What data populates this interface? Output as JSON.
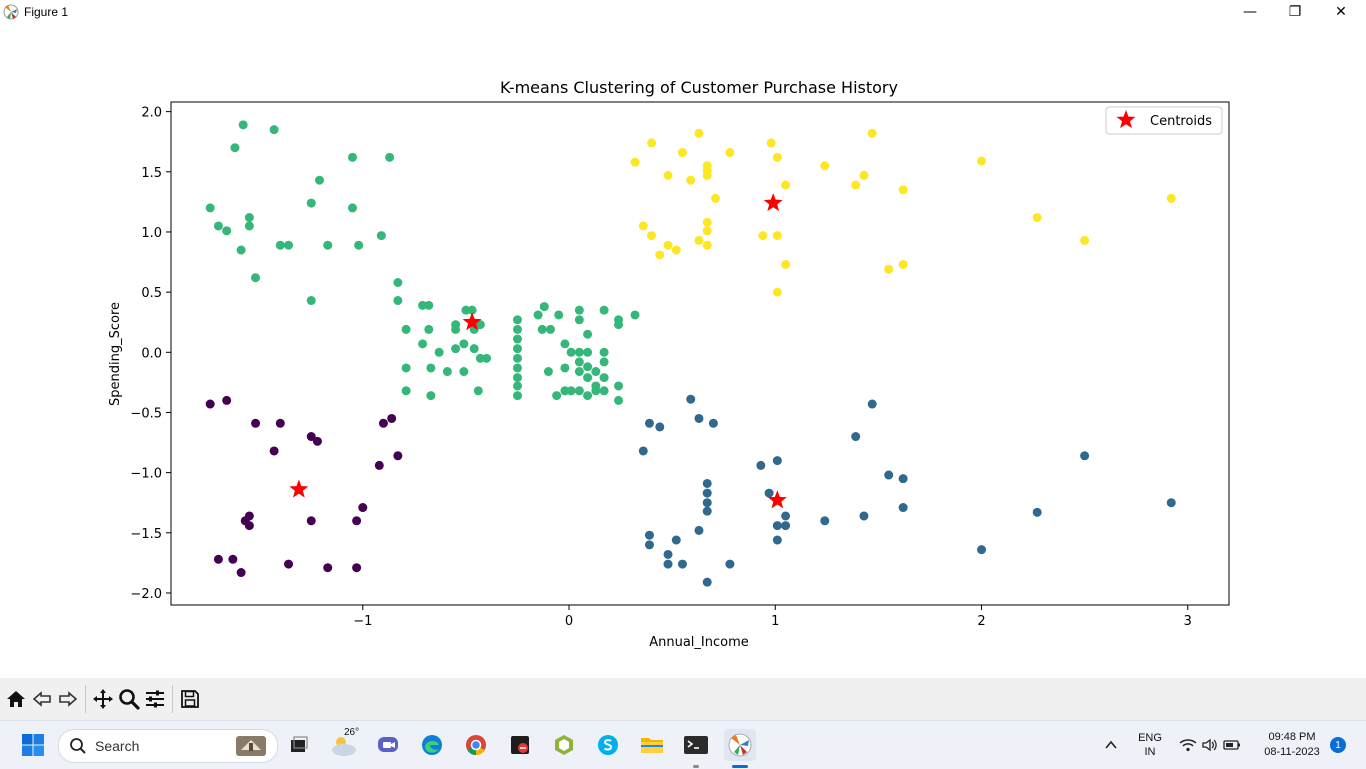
{
  "window": {
    "title": "Figure 1",
    "minimize_label": "—",
    "maximize_label": "❐",
    "close_label": "✕"
  },
  "chart_data": {
    "type": "scatter",
    "title": "K-means Clustering of Customer Purchase History",
    "xlabel": "Annual_Income",
    "ylabel": "Spending_Score",
    "xlim": [
      -1.93,
      3.2
    ],
    "ylim": [
      -2.1,
      2.08
    ],
    "xticks": [
      -1,
      0,
      1,
      2,
      3
    ],
    "xtick_labels": [
      "−1",
      "0",
      "1",
      "2",
      "3"
    ],
    "yticks": [
      -2.0,
      -1.5,
      -1.0,
      -0.5,
      0.0,
      0.5,
      1.0,
      1.5,
      2.0
    ],
    "ytick_labels": [
      "−2.0",
      "−1.5",
      "−1.0",
      "−0.5",
      "0.0",
      "0.5",
      "1.0",
      "1.5",
      "2.0"
    ],
    "grid": false,
    "legend": {
      "placement": "top-right",
      "entries": [
        "Centroids"
      ]
    },
    "clusters": [
      {
        "color": "#440154",
        "points": [
          [
            -1.74,
            -0.43
          ],
          [
            -1.66,
            -0.4
          ],
          [
            -1.52,
            -0.59
          ],
          [
            -1.43,
            -0.82
          ],
          [
            -1.4,
            -0.59
          ],
          [
            -1.25,
            -0.7
          ],
          [
            -1.22,
            -0.74
          ],
          [
            -0.9,
            -0.59
          ],
          [
            -0.86,
            -0.55
          ],
          [
            -0.92,
            -0.94
          ],
          [
            -0.83,
            -0.86
          ],
          [
            -1.0,
            -1.29
          ],
          [
            -1.03,
            -1.4
          ],
          [
            -1.25,
            -1.4
          ],
          [
            -1.57,
            -1.4
          ],
          [
            -1.55,
            -1.36
          ],
          [
            -1.55,
            -1.44
          ],
          [
            -1.7,
            -1.72
          ],
          [
            -1.63,
            -1.72
          ],
          [
            -1.59,
            -1.83
          ],
          [
            -1.36,
            -1.76
          ],
          [
            -1.17,
            -1.79
          ],
          [
            -1.03,
            -1.79
          ]
        ]
      },
      {
        "color": "#31688e",
        "points": [
          [
            0.59,
            -0.39
          ],
          [
            0.39,
            -0.59
          ],
          [
            0.44,
            -0.62
          ],
          [
            0.63,
            -0.55
          ],
          [
            0.7,
            -0.59
          ],
          [
            0.36,
            -0.82
          ],
          [
            0.93,
            -0.94
          ],
          [
            1.01,
            -0.9
          ],
          [
            0.97,
            -1.17
          ],
          [
            1.05,
            -1.36
          ],
          [
            1.01,
            -1.44
          ],
          [
            1.05,
            -1.44
          ],
          [
            1.01,
            -1.56
          ],
          [
            1.24,
            -1.4
          ],
          [
            1.43,
            -1.36
          ],
          [
            1.39,
            -0.7
          ],
          [
            1.47,
            -0.43
          ],
          [
            1.55,
            -1.02
          ],
          [
            1.62,
            -1.05
          ],
          [
            1.62,
            -1.29
          ],
          [
            2.0,
            -1.64
          ],
          [
            2.27,
            -1.33
          ],
          [
            2.5,
            -0.86
          ],
          [
            2.92,
            -1.25
          ],
          [
            0.67,
            -1.09
          ],
          [
            0.67,
            -1.17
          ],
          [
            0.67,
            -1.25
          ],
          [
            0.67,
            -1.32
          ],
          [
            0.63,
            -1.48
          ],
          [
            0.39,
            -1.52
          ],
          [
            0.39,
            -1.6
          ],
          [
            0.52,
            -1.56
          ],
          [
            0.48,
            -1.68
          ],
          [
            0.48,
            -1.76
          ],
          [
            0.55,
            -1.76
          ],
          [
            0.67,
            -1.91
          ],
          [
            0.78,
            -1.76
          ]
        ]
      },
      {
        "color": "#35b779",
        "points": [
          [
            -1.58,
            1.89
          ],
          [
            -1.43,
            1.85
          ],
          [
            -1.62,
            1.7
          ],
          [
            -1.05,
            1.62
          ],
          [
            -0.87,
            1.62
          ],
          [
            -1.21,
            1.43
          ],
          [
            -1.25,
            1.24
          ],
          [
            -1.74,
            1.2
          ],
          [
            -1.05,
            1.2
          ],
          [
            -1.55,
            1.12
          ],
          [
            -1.7,
            1.05
          ],
          [
            -1.66,
            1.01
          ],
          [
            -1.55,
            1.05
          ],
          [
            -0.91,
            0.97
          ],
          [
            -1.4,
            0.89
          ],
          [
            -1.36,
            0.89
          ],
          [
            -1.17,
            0.89
          ],
          [
            -1.02,
            0.89
          ],
          [
            -1.59,
            0.85
          ],
          [
            -1.52,
            0.62
          ],
          [
            -0.83,
            0.58
          ],
          [
            -1.25,
            0.43
          ],
          [
            -0.83,
            0.43
          ],
          [
            -0.71,
            0.39
          ],
          [
            -0.68,
            0.39
          ],
          [
            -0.79,
            0.19
          ],
          [
            -0.68,
            0.19
          ],
          [
            -0.55,
            0.19
          ],
          [
            -0.55,
            0.23
          ],
          [
            -0.5,
            0.35
          ],
          [
            -0.47,
            0.35
          ],
          [
            -0.43,
            0.23
          ],
          [
            -0.46,
            0.19
          ],
          [
            -0.71,
            0.07
          ],
          [
            -0.63,
            0.0
          ],
          [
            -0.55,
            0.03
          ],
          [
            -0.51,
            0.07
          ],
          [
            -0.46,
            0.03
          ],
          [
            -0.43,
            -0.05
          ],
          [
            -0.79,
            -0.13
          ],
          [
            -0.67,
            -0.13
          ],
          [
            -0.59,
            -0.16
          ],
          [
            -0.51,
            -0.16
          ],
          [
            -0.79,
            -0.32
          ],
          [
            -0.67,
            -0.36
          ],
          [
            -0.44,
            -0.32
          ],
          [
            -0.25,
            0.27
          ],
          [
            -0.25,
            0.19
          ],
          [
            -0.25,
            0.11
          ],
          [
            -0.25,
            0.03
          ],
          [
            -0.25,
            -0.05
          ],
          [
            -0.25,
            -0.13
          ],
          [
            -0.25,
            -0.21
          ],
          [
            -0.25,
            -0.28
          ],
          [
            -0.25,
            -0.36
          ],
          [
            -0.15,
            0.31
          ],
          [
            -0.12,
            0.38
          ],
          [
            -0.09,
            0.19
          ],
          [
            -0.05,
            0.31
          ],
          [
            -0.13,
            0.19
          ],
          [
            -0.1,
            -0.16
          ],
          [
            -0.06,
            -0.36
          ],
          [
            -0.02,
            -0.32
          ],
          [
            0.01,
            -0.32
          ],
          [
            0.05,
            -0.32
          ],
          [
            0.09,
            -0.36
          ],
          [
            0.13,
            -0.32
          ],
          [
            0.17,
            -0.32
          ],
          [
            0.24,
            -0.28
          ],
          [
            0.24,
            -0.4
          ],
          [
            0.05,
            0.35
          ],
          [
            0.09,
            0.15
          ],
          [
            0.05,
            0.27
          ],
          [
            0.17,
            0.35
          ],
          [
            0.24,
            0.23
          ],
          [
            0.24,
            0.27
          ],
          [
            0.32,
            0.31
          ],
          [
            -0.02,
            0.07
          ],
          [
            0.01,
            0.0
          ],
          [
            0.05,
            0.0
          ],
          [
            0.09,
            0.0
          ],
          [
            0.17,
            0.0
          ],
          [
            0.05,
            -0.08
          ],
          [
            0.09,
            -0.12
          ],
          [
            0.13,
            -0.16
          ],
          [
            -0.02,
            -0.13
          ],
          [
            0.05,
            -0.16
          ],
          [
            0.09,
            -0.21
          ],
          [
            0.17,
            -0.21
          ],
          [
            0.13,
            -0.28
          ],
          [
            0.17,
            -0.08
          ],
          [
            -0.4,
            -0.05
          ]
        ]
      },
      {
        "color": "#fde725",
        "points": [
          [
            0.4,
            1.74
          ],
          [
            0.63,
            1.82
          ],
          [
            0.55,
            1.66
          ],
          [
            0.32,
            1.58
          ],
          [
            0.48,
            1.47
          ],
          [
            0.59,
            1.43
          ],
          [
            0.67,
            1.55
          ],
          [
            0.67,
            1.51
          ],
          [
            0.67,
            1.47
          ],
          [
            0.78,
            1.66
          ],
          [
            0.98,
            1.74
          ],
          [
            1.01,
            1.62
          ],
          [
            1.05,
            1.39
          ],
          [
            0.71,
            1.28
          ],
          [
            0.67,
            1.08
          ],
          [
            0.67,
            1.01
          ],
          [
            0.63,
            0.93
          ],
          [
            0.67,
            0.89
          ],
          [
            0.36,
            1.05
          ],
          [
            0.4,
            0.97
          ],
          [
            0.48,
            0.89
          ],
          [
            0.52,
            0.85
          ],
          [
            0.44,
            0.81
          ],
          [
            0.94,
            0.97
          ],
          [
            1.01,
            0.97
          ],
          [
            1.05,
            0.73
          ],
          [
            1.01,
            0.5
          ],
          [
            1.24,
            1.55
          ],
          [
            1.39,
            1.39
          ],
          [
            1.43,
            1.47
          ],
          [
            1.47,
            1.82
          ],
          [
            1.62,
            1.35
          ],
          [
            1.55,
            0.69
          ],
          [
            1.62,
            0.73
          ],
          [
            2.0,
            1.59
          ],
          [
            2.27,
            1.12
          ],
          [
            2.5,
            0.93
          ],
          [
            2.92,
            1.28
          ]
        ]
      }
    ],
    "centroids": {
      "name": "Centroids",
      "color": "#ff0000",
      "points": [
        [
          -1.31,
          -1.14
        ],
        [
          -0.47,
          0.25
        ],
        [
          1.01,
          -1.23
        ],
        [
          0.99,
          1.24
        ]
      ]
    }
  },
  "toolbar": {
    "icons": [
      "home-icon",
      "back-icon",
      "forward-icon",
      "pan-icon",
      "zoom-icon",
      "configure-subplots-icon",
      "save-icon"
    ]
  },
  "taskbar": {
    "search_placeholder": "Search",
    "weather_temp": "26°",
    "language_line1": "ENG",
    "language_line2": "IN",
    "time": "09:48 PM",
    "date": "08-11-2023",
    "notification_count": "1"
  }
}
